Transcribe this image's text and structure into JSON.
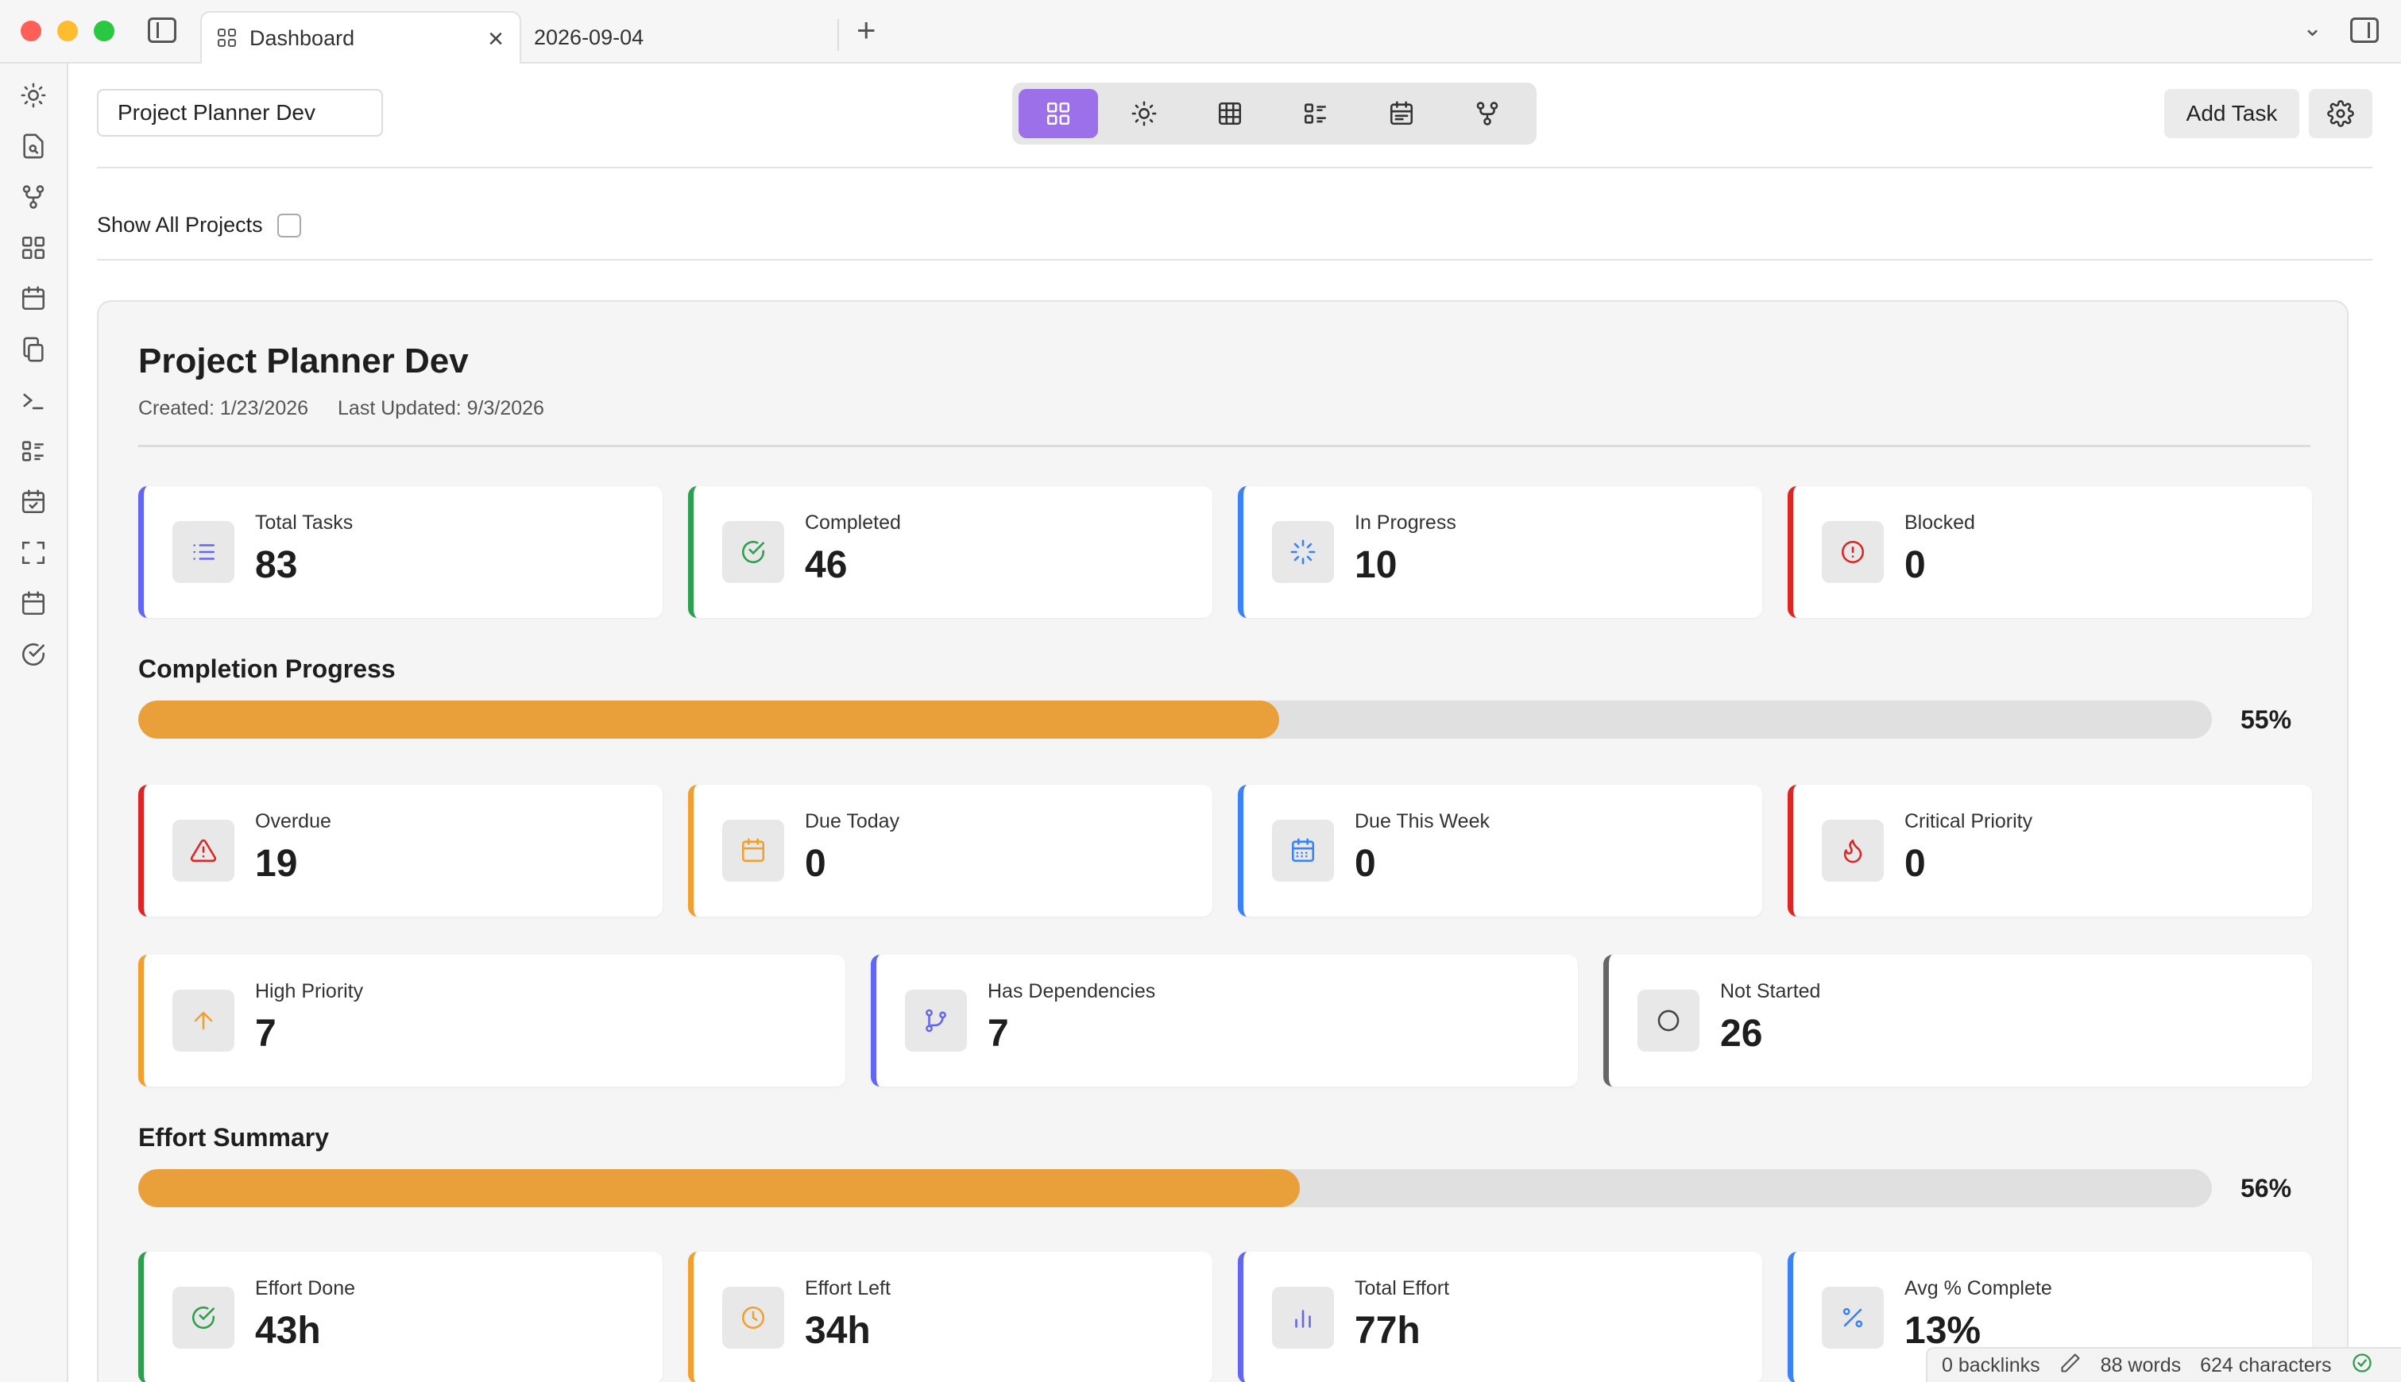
{
  "tabs": [
    {
      "label": "Dashboard",
      "active": true
    },
    {
      "label": "2026-09-04",
      "active": false
    }
  ],
  "toolbar": {
    "project_select": "Project Planner Dev",
    "add_task_label": "Add Task",
    "views": [
      "dashboard-icon",
      "sun-icon",
      "table-icon",
      "list-icon",
      "calendar-icon",
      "dependency-graph-icon"
    ]
  },
  "filter": {
    "show_all_label": "Show All Projects",
    "checked": false
  },
  "project": {
    "title": "Project Planner Dev",
    "created": "Created: 1/23/2026",
    "updated": "Last Updated: 9/3/2026"
  },
  "stats_row1": [
    {
      "label": "Total Tasks",
      "value": "83",
      "color": "#6366f1",
      "icon": "list-icon"
    },
    {
      "label": "Completed",
      "value": "46",
      "color": "#2e9e4f",
      "icon": "check-circle-icon"
    },
    {
      "label": "In Progress",
      "value": "10",
      "color": "#3b82f6",
      "icon": "spinner-icon"
    },
    {
      "label": "Blocked",
      "value": "0",
      "color": "#dc2626",
      "icon": "alert-circle-icon"
    }
  ],
  "completion": {
    "title": "Completion Progress",
    "percent_label": "55%",
    "percent": 55
  },
  "stats_row2": [
    {
      "label": "Overdue",
      "value": "19",
      "color": "#dc2626",
      "icon": "warning-triangle-icon"
    },
    {
      "label": "Due Today",
      "value": "0",
      "color": "#f0a030",
      "icon": "calendar-icon"
    },
    {
      "label": "Due This Week",
      "value": "0",
      "color": "#3b82f6",
      "icon": "calendar-week-icon"
    },
    {
      "label": "Critical Priority",
      "value": "0",
      "color": "#dc2626",
      "icon": "flame-icon"
    }
  ],
  "stats_row3": [
    {
      "label": "High Priority",
      "value": "7",
      "color": "#f0a030",
      "icon": "arrow-up-icon"
    },
    {
      "label": "Has Dependencies",
      "value": "7",
      "color": "#6366f1",
      "icon": "git-branch-icon"
    },
    {
      "label": "Not Started",
      "value": "26",
      "color": "#666666",
      "icon": "circle-icon"
    }
  ],
  "effort": {
    "title": "Effort Summary",
    "percent_label": "56%",
    "percent": 56
  },
  "stats_row4": [
    {
      "label": "Effort Done",
      "value": "43h",
      "color": "#2e9e4f",
      "icon": "check-circle-icon"
    },
    {
      "label": "Effort Left",
      "value": "34h",
      "color": "#f0a030",
      "icon": "clock-icon"
    },
    {
      "label": "Total Effort",
      "value": "77h",
      "color": "#6366f1",
      "icon": "bar-chart-icon"
    },
    {
      "label": "Avg % Complete",
      "value": "13%",
      "color": "#3b82f6",
      "icon": "percent-icon"
    }
  ],
  "status": {
    "backlinks": "0 backlinks",
    "words": "88 words",
    "characters": "624 characters"
  }
}
